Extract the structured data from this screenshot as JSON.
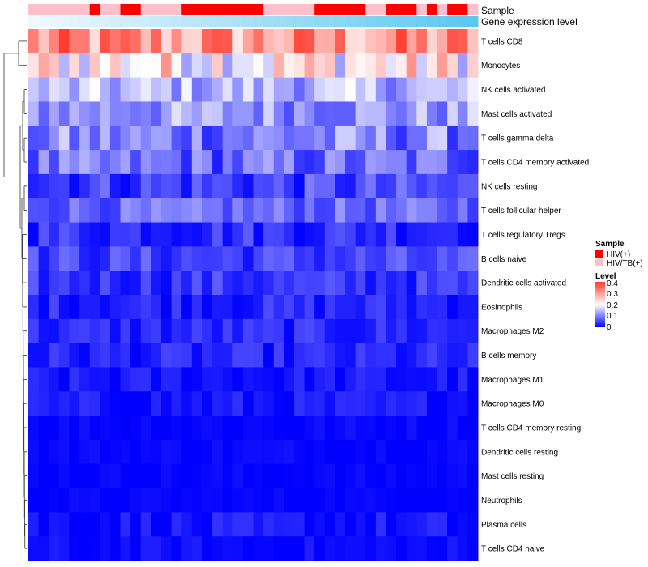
{
  "chart_data": {
    "type": "heatmap",
    "title": "",
    "rows": [
      "T cells CD8",
      "Monocytes",
      "NK cells activated",
      "Mast cells activated",
      "T cells gamma delta",
      "T cells CD4 memory activated",
      "NK cells resting",
      "T cells follicular helper",
      "T cells regulatory  Tregs",
      "B cells naive",
      "Dendritic cells activated",
      "Eosinophils",
      "Macrophages M2",
      "B cells memory",
      "Macrophages M1",
      "Macrophages M0",
      "T cells CD4 memory resting",
      "Dendritic cells resting",
      "Mast cells resting",
      "Neutrophils",
      "Plasma cells",
      "T cells CD4 naive"
    ],
    "annotations": {
      "sample_label": "Sample",
      "expression_label": "Gene expression level",
      "sample_groups": [
        "HIV(+)",
        "HIV/TB(+)"
      ],
      "sample_colors": {
        "HIV(+)": "#ff0000",
        "HIV/TB(+)": "#ffc0cb"
      },
      "sample_assignment": [
        "HIV/TB(+)",
        "HIV/TB(+)",
        "HIV/TB(+)",
        "HIV/TB(+)",
        "HIV/TB(+)",
        "HIV/TB(+)",
        "HIV(+)",
        "HIV/TB(+)",
        "HIV/TB(+)",
        "HIV(+)",
        "HIV(+)",
        "HIV/TB(+)",
        "HIV/TB(+)",
        "HIV/TB(+)",
        "HIV/TB(+)",
        "HIV(+)",
        "HIV(+)",
        "HIV(+)",
        "HIV(+)",
        "HIV(+)",
        "HIV(+)",
        "HIV(+)",
        "HIV(+)",
        "HIV/TB(+)",
        "HIV/TB(+)",
        "HIV/TB(+)",
        "HIV/TB(+)",
        "HIV/TB(+)",
        "HIV(+)",
        "HIV(+)",
        "HIV(+)",
        "HIV(+)",
        "HIV(+)",
        "HIV/TB(+)",
        "HIV/TB(+)",
        "HIV(+)",
        "HIV(+)",
        "HIV(+)",
        "HIV/TB(+)",
        "HIV(+)",
        "HIV/TB(+)",
        "HIV(+)",
        "HIV(+)",
        "HIV/TB(+)"
      ],
      "expression_gradient": [
        "#f0f8ff",
        "#5bc8f0"
      ]
    },
    "legend": {
      "sample_title": "Sample",
      "sample_items": [
        "HIV(+)",
        "HIV/TB(+)"
      ],
      "level_title": "Level",
      "level_ticks": [
        "0.4",
        "0.3",
        "0.2",
        "0.1",
        "0"
      ],
      "level_range": [
        0,
        0.4
      ],
      "level_colors": [
        "#0000ff",
        "#ffffff",
        "#ff3b2f"
      ]
    },
    "n_columns": 44,
    "row_profiles": [
      {
        "base": 0.3,
        "spread": 0.1
      },
      {
        "base": 0.22,
        "spread": 0.1
      },
      {
        "base": 0.14,
        "spread": 0.06
      },
      {
        "base": 0.12,
        "spread": 0.06
      },
      {
        "base": 0.1,
        "spread": 0.07
      },
      {
        "base": 0.08,
        "spread": 0.06
      },
      {
        "base": 0.05,
        "spread": 0.05
      },
      {
        "base": 0.08,
        "spread": 0.04
      },
      {
        "base": 0.04,
        "spread": 0.04
      },
      {
        "base": 0.05,
        "spread": 0.04
      },
      {
        "base": 0.04,
        "spread": 0.035
      },
      {
        "base": 0.03,
        "spread": 0.03
      },
      {
        "base": 0.03,
        "spread": 0.03
      },
      {
        "base": 0.025,
        "spread": 0.03
      },
      {
        "base": 0.015,
        "spread": 0.025
      },
      {
        "base": 0.015,
        "spread": 0.025
      },
      {
        "base": 0.005,
        "spread": 0.012
      },
      {
        "base": 0.005,
        "spread": 0.012
      },
      {
        "base": 0.003,
        "spread": 0.01
      },
      {
        "base": 0.003,
        "spread": 0.008
      },
      {
        "base": 0.01,
        "spread": 0.03
      },
      {
        "base": 0.005,
        "spread": 0.02
      }
    ],
    "dendrogram": "hierarchical row clustering (left side)"
  }
}
